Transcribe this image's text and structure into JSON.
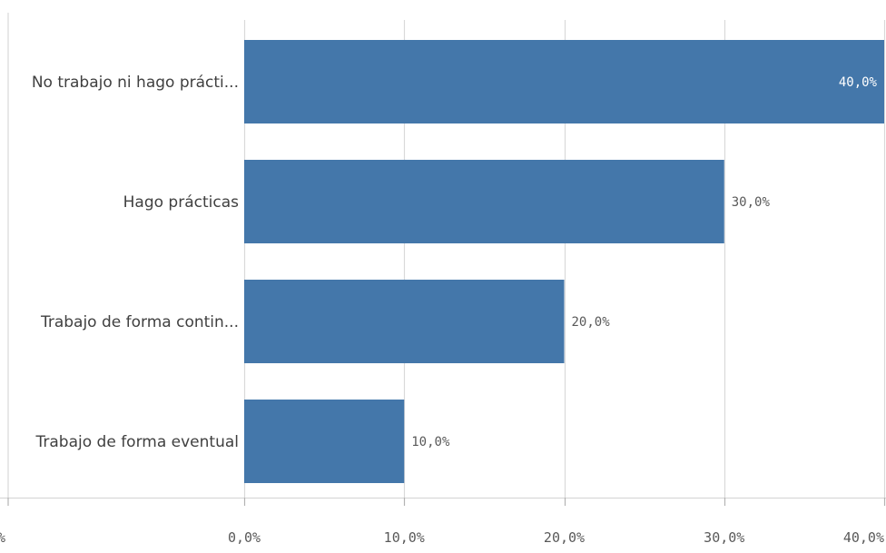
{
  "chart_data": {
    "type": "bar",
    "orientation": "horizontal",
    "categories": [
      "No trabajo ni hago prácti...",
      "Hago prácticas",
      "Trabajo de forma contin...",
      "Trabajo de forma eventual"
    ],
    "values": [
      40.0,
      30.0,
      20.0,
      10.0
    ],
    "value_labels": [
      "40,0%",
      "30,0%",
      "20,0%",
      "10,0%"
    ],
    "xlim": [
      0,
      40
    ],
    "x_ticks": [
      0,
      10,
      20,
      30,
      40
    ],
    "x_tick_labels": [
      "0,0%",
      "10,0%",
      "20,0%",
      "30,0%",
      "40,0%"
    ],
    "clipped_tick_label": "%",
    "grid": true,
    "bar_color": "#4477aa",
    "grid_color": "#d9d9d9",
    "label_color": "#404040",
    "value_label_inside_color": "#ffffff",
    "value_label_outside_color": "#595959"
  }
}
